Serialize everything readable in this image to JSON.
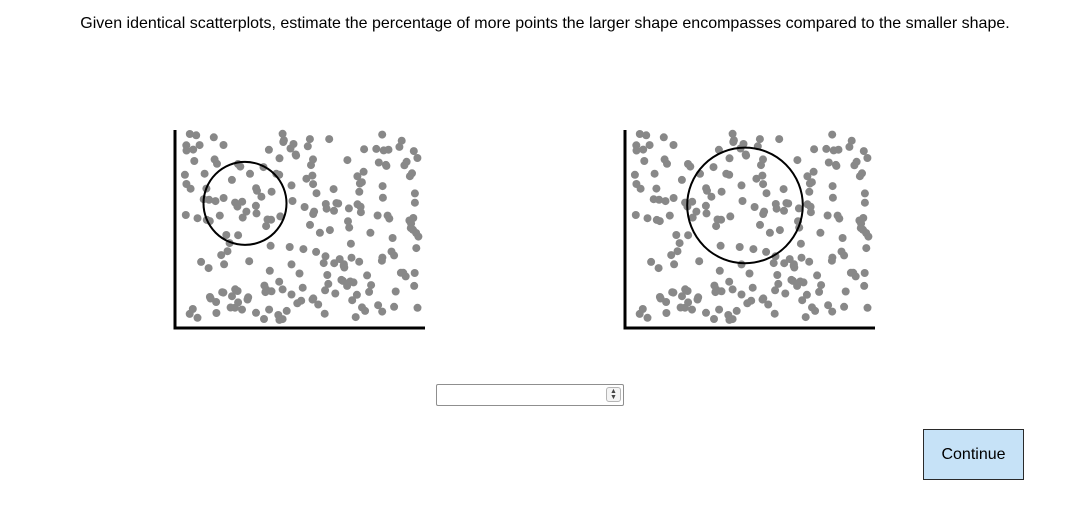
{
  "prompt": "Given identical scatterplots, estimate the percentage of more points the larger shape encompasses compared to the smaller shape.",
  "answer": {
    "value": "",
    "placeholder": ""
  },
  "continue_label": "Continue",
  "colors": {
    "point": "#888888",
    "axis": "#000000",
    "shape": "#000000",
    "button_bg": "#c6e2f7"
  },
  "icons": {
    "spinner": "up-down-spinner-icon"
  },
  "chart_data": [
    {
      "type": "scatter",
      "name": "smaller",
      "shape": {
        "type": "circle",
        "cx": 0.28,
        "cy": 0.62,
        "r": 0.165
      },
      "xlim": [
        0,
        1
      ],
      "ylim": [
        0,
        1
      ],
      "points": {
        "seed": 17,
        "count": 220
      }
    },
    {
      "type": "scatter",
      "name": "larger",
      "shape": {
        "type": "circle",
        "cx": 0.48,
        "cy": 0.61,
        "r": 0.23
      },
      "xlim": [
        0,
        1
      ],
      "ylim": [
        0,
        1
      ],
      "points": {
        "seed": 17,
        "count": 220
      }
    }
  ]
}
